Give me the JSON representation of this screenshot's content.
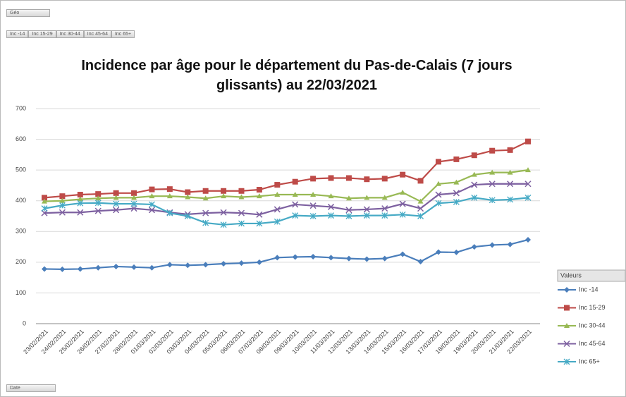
{
  "chart_data": {
    "type": "line",
    "title": "Incidence par âge pour le département du Pas-de-Calais  (7 jours glissants) au 22/03/2021",
    "filter_button": "Géo",
    "field_buttons": [
      "Inc -14",
      "Inc 15-29",
      "Inc 30-44",
      "Inc 45-64",
      "Inc 65+"
    ],
    "axis_button": "Date",
    "legend_title": "Valeurs",
    "legend": "right",
    "grid": true,
    "ylim": [
      0,
      700
    ],
    "yticks": [
      0,
      100,
      200,
      300,
      400,
      500,
      600,
      700
    ],
    "categories": [
      "23/02/2021",
      "24/02/2021",
      "25/02/2021",
      "26/02/2021",
      "27/02/2021",
      "28/02/2021",
      "01/03/2021",
      "02/03/2021",
      "03/03/2021",
      "04/03/2021",
      "05/03/2021",
      "06/03/2021",
      "07/03/2021",
      "08/03/2021",
      "09/03/2021",
      "10/03/2021",
      "11/03/2021",
      "12/03/2021",
      "13/03/2021",
      "14/03/2021",
      "15/03/2021",
      "16/03/2021",
      "17/03/2021",
      "18/03/2021",
      "19/03/2021",
      "20/03/2021",
      "21/03/2021",
      "22/03/2021"
    ],
    "series": [
      {
        "name": "Inc -14",
        "color": "#4a7ebb",
        "marker": "diamond",
        "values": [
          178,
          177,
          178,
          182,
          186,
          184,
          182,
          192,
          190,
          192,
          195,
          197,
          200,
          215,
          217,
          218,
          215,
          212,
          210,
          212,
          226,
          202,
          233,
          232,
          250,
          256,
          258,
          273
        ]
      },
      {
        "name": "Inc 15-29",
        "color": "#be4b48",
        "marker": "square",
        "values": [
          410,
          415,
          420,
          422,
          425,
          425,
          437,
          438,
          428,
          432,
          432,
          432,
          436,
          452,
          462,
          472,
          474,
          474,
          470,
          472,
          485,
          465,
          527,
          535,
          548,
          563,
          565,
          593
        ]
      },
      {
        "name": "Inc 30-44",
        "color": "#98b954",
        "marker": "triangle",
        "values": [
          398,
          400,
          405,
          408,
          410,
          410,
          415,
          415,
          412,
          408,
          415,
          412,
          415,
          420,
          420,
          420,
          415,
          408,
          410,
          410,
          427,
          398,
          455,
          460,
          485,
          492,
          492,
          500
        ]
      },
      {
        "name": "Inc 45-64",
        "color": "#7d60a0",
        "marker": "x",
        "values": [
          360,
          362,
          362,
          367,
          370,
          375,
          370,
          362,
          356,
          360,
          362,
          360,
          355,
          372,
          388,
          384,
          380,
          370,
          372,
          375,
          390,
          375,
          420,
          425,
          452,
          455,
          455,
          455
        ]
      },
      {
        "name": "Inc 65+",
        "color": "#46aac5",
        "marker": "star",
        "values": [
          375,
          385,
          392,
          393,
          390,
          390,
          388,
          360,
          350,
          328,
          322,
          326,
          326,
          332,
          352,
          350,
          352,
          350,
          352,
          352,
          355,
          350,
          392,
          396,
          410,
          402,
          404,
          410
        ]
      }
    ]
  }
}
